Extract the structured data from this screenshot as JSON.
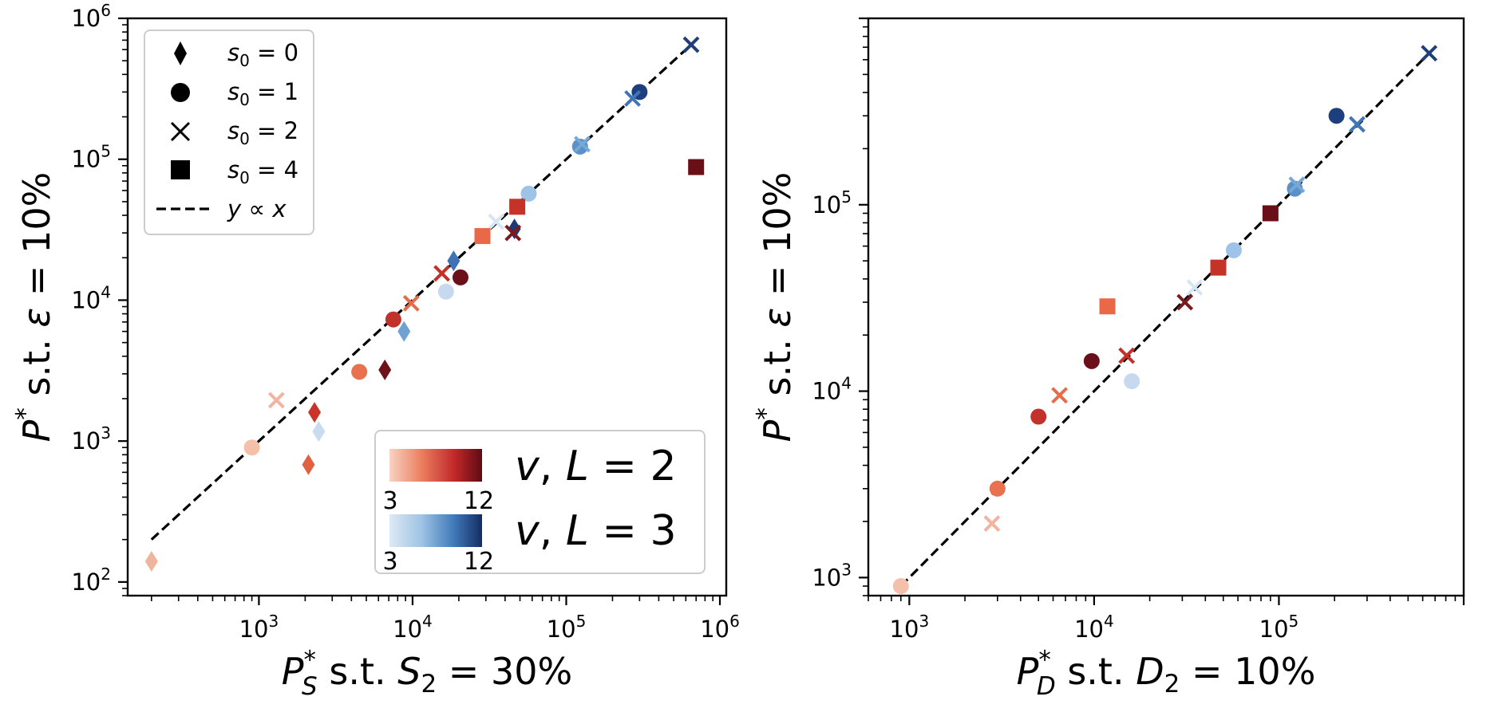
{
  "chart_data": [
    {
      "type": "scatter",
      "panel": "left",
      "xscale": "log",
      "yscale": "log",
      "xlim": [
        140,
        1100000
      ],
      "ylim": [
        80,
        1000000
      ],
      "x_ticks": [
        1000,
        10000,
        100000,
        1000000
      ],
      "x_tick_labels": [
        {
          "base": "10",
          "exp": "3"
        },
        {
          "base": "10",
          "exp": "4"
        },
        {
          "base": "10",
          "exp": "5"
        },
        {
          "base": "10",
          "exp": "6"
        }
      ],
      "y_ticks": [
        100,
        1000,
        10000,
        100000,
        1000000
      ],
      "y_tick_labels": [
        {
          "base": "10",
          "exp": "2"
        },
        {
          "base": "10",
          "exp": "3"
        },
        {
          "base": "10",
          "exp": "4"
        },
        {
          "base": "10",
          "exp": "5"
        },
        {
          "base": "10",
          "exp": "6"
        }
      ],
      "xlabel": {
        "sym": "P",
        "sup": "*",
        "sub": "S",
        "rest": " s.t. ",
        "var": "S",
        "var_sub": "2",
        "eq": " = 30%"
      },
      "ylabel": {
        "sym": "P",
        "sup": "*",
        "rest": " s.t. ",
        "var": "ε",
        "eq": " = 10%"
      },
      "reference_line": {
        "label": "y ∝ x",
        "x": [
          200,
          650000
        ]
      },
      "legend": {
        "placement": "upper-left",
        "entries": [
          {
            "marker": "diamond",
            "var": "s",
            "sub": "0",
            "eq": " = 0"
          },
          {
            "marker": "circle",
            "var": "s",
            "sub": "0",
            "eq": " = 1"
          },
          {
            "marker": "x",
            "var": "s",
            "sub": "0",
            "eq": " = 2"
          },
          {
            "marker": "square",
            "var": "s",
            "sub": "0",
            "eq": " = 4"
          },
          {
            "marker": "dashed-line",
            "text": "y ∝ x"
          }
        ]
      },
      "colorbars": [
        {
          "cmap": "reds",
          "min_label": "3",
          "max_label": "12",
          "label_var": "v",
          "label_rest": ", ",
          "label_L": "L",
          "label_eq": " = 2"
        },
        {
          "cmap": "blues",
          "min_label": "3",
          "max_label": "12",
          "label_var": "v",
          "label_rest": ", ",
          "label_L": "L",
          "label_eq": " = 3"
        }
      ],
      "points": [
        {
          "m": "d",
          "x": 200,
          "y": 140,
          "c": "#eeb49c"
        },
        {
          "m": "d",
          "x": 2100,
          "y": 680,
          "c": "#e0603f"
        },
        {
          "m": "d",
          "x": 2300,
          "y": 1600,
          "c": "#c93528"
        },
        {
          "m": "d",
          "x": 2450,
          "y": 1170,
          "c": "#c9dbee"
        },
        {
          "m": "d",
          "x": 6600,
          "y": 3200,
          "c": "#6d1218"
        },
        {
          "m": "d",
          "x": 8800,
          "y": 6000,
          "c": "#6fa1d3"
        },
        {
          "m": "d",
          "x": 18500,
          "y": 19000,
          "c": "#3e74b6"
        },
        {
          "m": "d",
          "x": 46000,
          "y": 32000,
          "c": "#1c3a78"
        },
        {
          "m": "o",
          "x": 900,
          "y": 900,
          "c": "#f4c0aa"
        },
        {
          "m": "o",
          "x": 4500,
          "y": 3100,
          "c": "#e8714f"
        },
        {
          "m": "o",
          "x": 7500,
          "y": 7300,
          "c": "#c1322a"
        },
        {
          "m": "o",
          "x": 16500,
          "y": 11500,
          "c": "#c6d9ee"
        },
        {
          "m": "o",
          "x": 20500,
          "y": 14500,
          "c": "#6b0f1a"
        },
        {
          "m": "o",
          "x": 57000,
          "y": 57000,
          "c": "#9ec3e6"
        },
        {
          "m": "o",
          "x": 123000,
          "y": 123000,
          "c": "#5c90c8"
        },
        {
          "m": "o",
          "x": 300000,
          "y": 300000,
          "c": "#1e3f7e"
        },
        {
          "m": "x",
          "x": 1300,
          "y": 1950,
          "c": "#f2b4a0"
        },
        {
          "m": "x",
          "x": 9800,
          "y": 9500,
          "c": "#e66b49"
        },
        {
          "m": "x",
          "x": 15500,
          "y": 15500,
          "c": "#c33028"
        },
        {
          "m": "x",
          "x": 35000,
          "y": 36000,
          "c": "#d7e6f4"
        },
        {
          "m": "x",
          "x": 45000,
          "y": 30000,
          "c": "#7b1a1e"
        },
        {
          "m": "x",
          "x": 127000,
          "y": 128000,
          "c": "#76a7d6"
        },
        {
          "m": "x",
          "x": 270000,
          "y": 270000,
          "c": "#3f76b8"
        },
        {
          "m": "x",
          "x": 650000,
          "y": 650000,
          "c": "#203f74"
        },
        {
          "m": "s",
          "x": 28500,
          "y": 28500,
          "c": "#e86848"
        },
        {
          "m": "s",
          "x": 48000,
          "y": 46000,
          "c": "#c53228"
        },
        {
          "m": "s",
          "x": 700000,
          "y": 88000,
          "c": "#6a0f18"
        }
      ]
    },
    {
      "type": "scatter",
      "panel": "right",
      "xscale": "log",
      "yscale": "log",
      "xlim": [
        600,
        1000000
      ],
      "ylim": [
        800,
        1000000
      ],
      "x_ticks": [
        1000,
        10000,
        100000
      ],
      "x_tick_labels": [
        {
          "base": "10",
          "exp": "3"
        },
        {
          "base": "10",
          "exp": "4"
        },
        {
          "base": "10",
          "exp": "5"
        }
      ],
      "y_ticks": [
        1000,
        10000,
        100000
      ],
      "y_tick_labels": [
        {
          "base": "10",
          "exp": "3"
        },
        {
          "base": "10",
          "exp": "4"
        },
        {
          "base": "10",
          "exp": "5"
        }
      ],
      "xlabel": {
        "sym": "P",
        "sup": "*",
        "sub": "D",
        "rest": " s.t. ",
        "var": "D",
        "var_sub": "2",
        "eq": " = 10%"
      },
      "ylabel": {
        "sym": "P",
        "sup": "*",
        "rest": " s.t. ",
        "var": "ε",
        "eq": " = 10%"
      },
      "reference_line": {
        "label": "y ∝ x",
        "x": [
          900,
          650000
        ]
      },
      "points": [
        {
          "m": "o",
          "x": 900,
          "y": 900,
          "c": "#f4c0aa"
        },
        {
          "m": "o",
          "x": 3000,
          "y": 3000,
          "c": "#e8714f"
        },
        {
          "m": "o",
          "x": 5000,
          "y": 7300,
          "c": "#c1322a"
        },
        {
          "m": "o",
          "x": 9700,
          "y": 14500,
          "c": "#6b0f1a"
        },
        {
          "m": "o",
          "x": 16000,
          "y": 11300,
          "c": "#c6d9ee"
        },
        {
          "m": "o",
          "x": 57000,
          "y": 57000,
          "c": "#9ec3e6"
        },
        {
          "m": "o",
          "x": 122000,
          "y": 122000,
          "c": "#5c90c8"
        },
        {
          "m": "o",
          "x": 205000,
          "y": 300000,
          "c": "#1e3f7e"
        },
        {
          "m": "x",
          "x": 2800,
          "y": 1950,
          "c": "#f2b4a0"
        },
        {
          "m": "x",
          "x": 6500,
          "y": 9500,
          "c": "#e66b49"
        },
        {
          "m": "x",
          "x": 15000,
          "y": 15500,
          "c": "#c33028"
        },
        {
          "m": "x",
          "x": 31000,
          "y": 30000,
          "c": "#7b1a1e"
        },
        {
          "m": "x",
          "x": 35000,
          "y": 36000,
          "c": "#d7e6f4"
        },
        {
          "m": "x",
          "x": 125000,
          "y": 128000,
          "c": "#76a7d6"
        },
        {
          "m": "x",
          "x": 265000,
          "y": 270000,
          "c": "#3f76b8"
        },
        {
          "m": "x",
          "x": 650000,
          "y": 650000,
          "c": "#203f74"
        },
        {
          "m": "s",
          "x": 11800,
          "y": 28500,
          "c": "#e86848"
        },
        {
          "m": "s",
          "x": 47000,
          "y": 46000,
          "c": "#c53228"
        },
        {
          "m": "s",
          "x": 90000,
          "y": 90000,
          "c": "#6a0f18"
        }
      ]
    }
  ]
}
